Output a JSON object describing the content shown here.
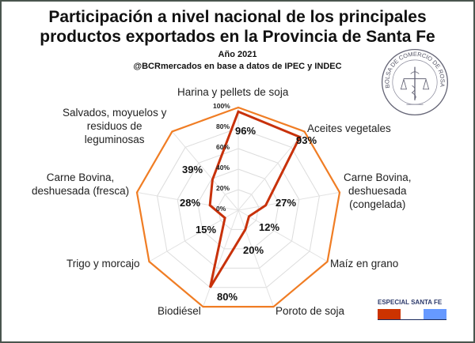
{
  "chart_data": {
    "type": "radar",
    "title": "Participación a nivel nacional de los principales productos exportados en la Provincia de Santa Fe",
    "title_lines": [
      "Participación a nivel nacional de los principales",
      "productos exportados en la Provincia de Santa Fe"
    ],
    "subtitle": "Año 2021",
    "source": "@BCRmercados en base a datos de IPEC y INDEC",
    "categories": [
      "Harina y pellets de soja",
      "Aceites vegetales",
      "Carne Bovina, deshuesada (congelada)",
      "Maíz en grano",
      "Poroto de soja",
      "Biodiésel",
      "Trigo y morcajo",
      "Carne Bovina, deshuesada (fresca)",
      "Salvados, moyuelos y residuos de leguminosas"
    ],
    "category_lines": [
      [
        "Harina y pellets de soja"
      ],
      [
        "Aceites vegetales"
      ],
      [
        "Carne Bovina,",
        "deshuesada",
        "(congelada)"
      ],
      [
        "Maíz en grano"
      ],
      [
        "Poroto de soja"
      ],
      [
        "Biodiésel"
      ],
      [
        "Trigo y morcajo"
      ],
      [
        "Carne Bovina,",
        "deshuesada (fresca)"
      ],
      [
        "Salvados, moyuelos y",
        "residuos de",
        "leguminosas"
      ]
    ],
    "values": [
      96,
      93,
      27,
      12,
      20,
      80,
      15,
      28,
      39
    ],
    "value_labels": [
      "96%",
      "93%",
      "27%",
      "12%",
      "20%",
      "80%",
      "15%",
      "28%",
      "39%"
    ],
    "rlim": [
      0,
      100
    ],
    "ticks": [
      "0%",
      "20%",
      "40%",
      "60%",
      "80%",
      "100%"
    ],
    "series_color": "#c8310a",
    "outer_color": "#f07d24",
    "grid": true
  },
  "logo": {
    "text": "BOLSA DE COMERCIO DE ROSARIO"
  },
  "badge": {
    "label": "ESPECIAL SANTA FE",
    "colors": [
      "#cc3300",
      "#ffffff",
      "#6699ff"
    ]
  }
}
